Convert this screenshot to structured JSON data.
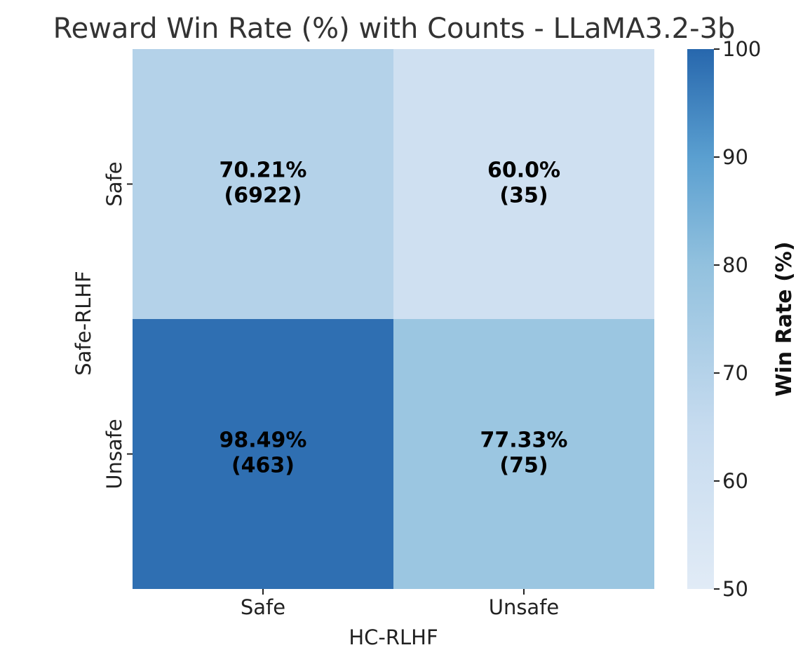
{
  "chart_data": {
    "type": "heatmap",
    "title": "Reward Win Rate (%) with Counts - LLaMA3.2-3b",
    "xlabel": "HC-RLHF",
    "ylabel": "Safe-RLHF",
    "x_categories": [
      "Safe",
      "Unsafe"
    ],
    "y_categories": [
      "Safe",
      "Unsafe"
    ],
    "cells": [
      [
        {
          "value": 70.21,
          "label": "70.21%",
          "count": "(6922)"
        },
        {
          "value": 60.0,
          "label": "60.0%",
          "count": "(35)"
        }
      ],
      [
        {
          "value": 98.49,
          "label": "98.49%",
          "count": "(463)"
        },
        {
          "value": 77.33,
          "label": "77.33%",
          "count": "(75)"
        }
      ]
    ],
    "colorbar": {
      "label": "Win Rate (%)",
      "min": 50,
      "max": 100,
      "ticks": [
        50,
        60,
        70,
        80,
        90,
        100
      ],
      "colormap": "Blues",
      "color_low": "#e1ebf6",
      "color_high": "#2767ad"
    }
  }
}
